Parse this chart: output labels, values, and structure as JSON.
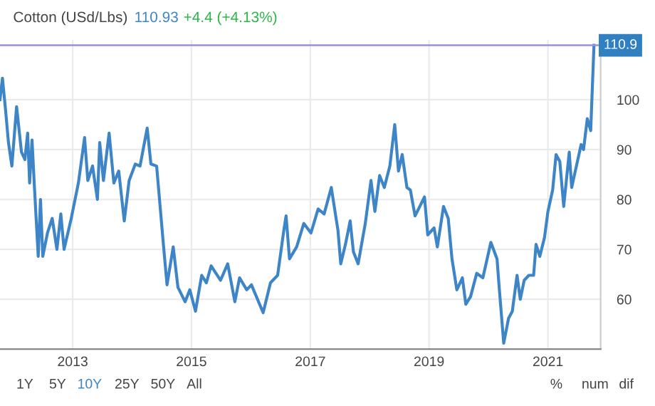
{
  "chart_data": {
    "type": "line",
    "title": "Cotton (USd/Lbs)",
    "annotations": [
      "110.93",
      "+4.4 (+4.13%)",
      "1Y",
      "5Y",
      "10Y",
      "25Y",
      "50Y",
      "All",
      "%",
      "num",
      "dif"
    ],
    "x": [
      "2011-10-12",
      "2011-10-27",
      "2011-11-15",
      "2011-12-03",
      "2011-12-24",
      "2012-01-22",
      "2012-02-21",
      "2012-03-13",
      "2012-03-30",
      "2012-04-11",
      "2012-04-26",
      "2012-05-10",
      "2012-06-03",
      "2012-06-17",
      "2012-07-01",
      "2012-07-30",
      "2012-08-28",
      "2012-09-26",
      "2012-10-20",
      "2012-11-09",
      "2012-12-23",
      "2013-02-05",
      "2013-03-15",
      "2013-04-04",
      "2013-05-03",
      "2013-06-02",
      "2013-06-16",
      "2013-07-09",
      "2013-08-13",
      "2013-09-11",
      "2013-10-11",
      "2013-11-14",
      "2013-12-14",
      "2014-01-21",
      "2014-02-19",
      "2014-04-04",
      "2014-04-27",
      "2014-06-01",
      "2014-07-14",
      "2014-08-04",
      "2014-09-11",
      "2014-10-10",
      "2014-11-23",
      "2014-12-22",
      "2015-01-26",
      "2015-03-05",
      "2015-04-03",
      "2015-05-02",
      "2015-06-29",
      "2015-08-12",
      "2015-09-25",
      "2015-10-24",
      "2015-12-07",
      "2016-01-05",
      "2016-03-17",
      "2016-05-01",
      "2016-06-14",
      "2016-07-22",
      "2016-08-05",
      "2016-08-26",
      "2016-10-09",
      "2016-11-22",
      "2017-01-05",
      "2017-02-18",
      "2017-03-27",
      "2017-05-10",
      "2017-06-20",
      "2017-07-07",
      "2017-08-05",
      "2017-09-03",
      "2017-09-23",
      "2017-10-22",
      "2017-12-05",
      "2018-01-09",
      "2018-02-02",
      "2018-03-03",
      "2018-04-01",
      "2018-05-05",
      "2018-06-04",
      "2018-06-27",
      "2018-07-20",
      "2018-08-18",
      "2018-09-08",
      "2018-10-07",
      "2018-11-05",
      "2018-12-04",
      "2018-12-24",
      "2019-02-01",
      "2019-02-21",
      "2019-03-31",
      "2019-04-29",
      "2019-05-22",
      "2019-06-21",
      "2019-07-25",
      "2019-08-15",
      "2019-09-13",
      "2019-10-21",
      "2019-11-28",
      "2020-01-16",
      "2020-02-23",
      "2020-03-06",
      "2020-04-04",
      "2020-05-04",
      "2020-05-27",
      "2020-06-25",
      "2020-07-15",
      "2020-08-08",
      "2020-09-06",
      "2020-10-05",
      "2020-10-20",
      "2020-11-12",
      "2020-12-11",
      "2021-01-01",
      "2021-01-30",
      "2021-02-20",
      "2021-03-15",
      "2021-04-08",
      "2021-05-12",
      "2021-05-27",
      "2021-06-25",
      "2021-07-24",
      "2021-08-08",
      "2021-08-31",
      "2021-09-21",
      "2021-10-11"
    ],
    "series": [
      {
        "color": "#3d85c6",
        "values": [
          100,
          104.3,
          98,
          91.4,
          86.7,
          98.6,
          89.5,
          88,
          93.3,
          83.3,
          91.9,
          82.9,
          68.6,
          80,
          68.6,
          73.3,
          76.2,
          70,
          77.1,
          70,
          76.2,
          83.3,
          92.4,
          83.8,
          86.7,
          80,
          91.4,
          83.8,
          93.3,
          83.3,
          85.7,
          75.7,
          83.8,
          87.1,
          86.7,
          94.3,
          87.1,
          86.7,
          70.5,
          62.9,
          70.5,
          62.4,
          59.5,
          61.9,
          57.6,
          64.8,
          63.3,
          66.7,
          63.8,
          67.1,
          59.5,
          64.3,
          61.9,
          62.9,
          57.3,
          63.3,
          64.8,
          73.8,
          76.7,
          68.1,
          70.5,
          75.2,
          73.3,
          78.1,
          77.1,
          82.4,
          73.8,
          67.1,
          71,
          75.7,
          69.5,
          67.1,
          75.2,
          83.8,
          77.6,
          84.8,
          82.4,
          86.7,
          95,
          85.7,
          89,
          82.4,
          81.9,
          76.7,
          78.6,
          80.5,
          72.9,
          74.3,
          70.5,
          78.6,
          76.2,
          68.1,
          61.9,
          64.3,
          59,
          60.5,
          65.2,
          64.3,
          71.4,
          68.1,
          62.9,
          51.2,
          56.2,
          57.6,
          64.8,
          60,
          63.8,
          64.8,
          64.8,
          71,
          68.6,
          72.4,
          77.6,
          81.9,
          89,
          87.6,
          78.6,
          89.5,
          82.4,
          86.7,
          91,
          90,
          96.2,
          93.8,
          110.9
        ]
      }
    ],
    "xlim": [
      "2011-10-12",
      "2021-11-21"
    ],
    "xticks": [
      "2013",
      "2015",
      "2017",
      "2019",
      "2021"
    ],
    "ylim": [
      50,
      112
    ],
    "yticks": [
      60,
      70,
      80,
      90,
      100
    ],
    "ref_lines": [
      {
        "axis": "y",
        "value": 110.9,
        "label": "110.9",
        "color": "#9b8fdc"
      }
    ],
    "grid": true,
    "legend": false,
    "line_style": "solid",
    "marker": "none"
  }
}
